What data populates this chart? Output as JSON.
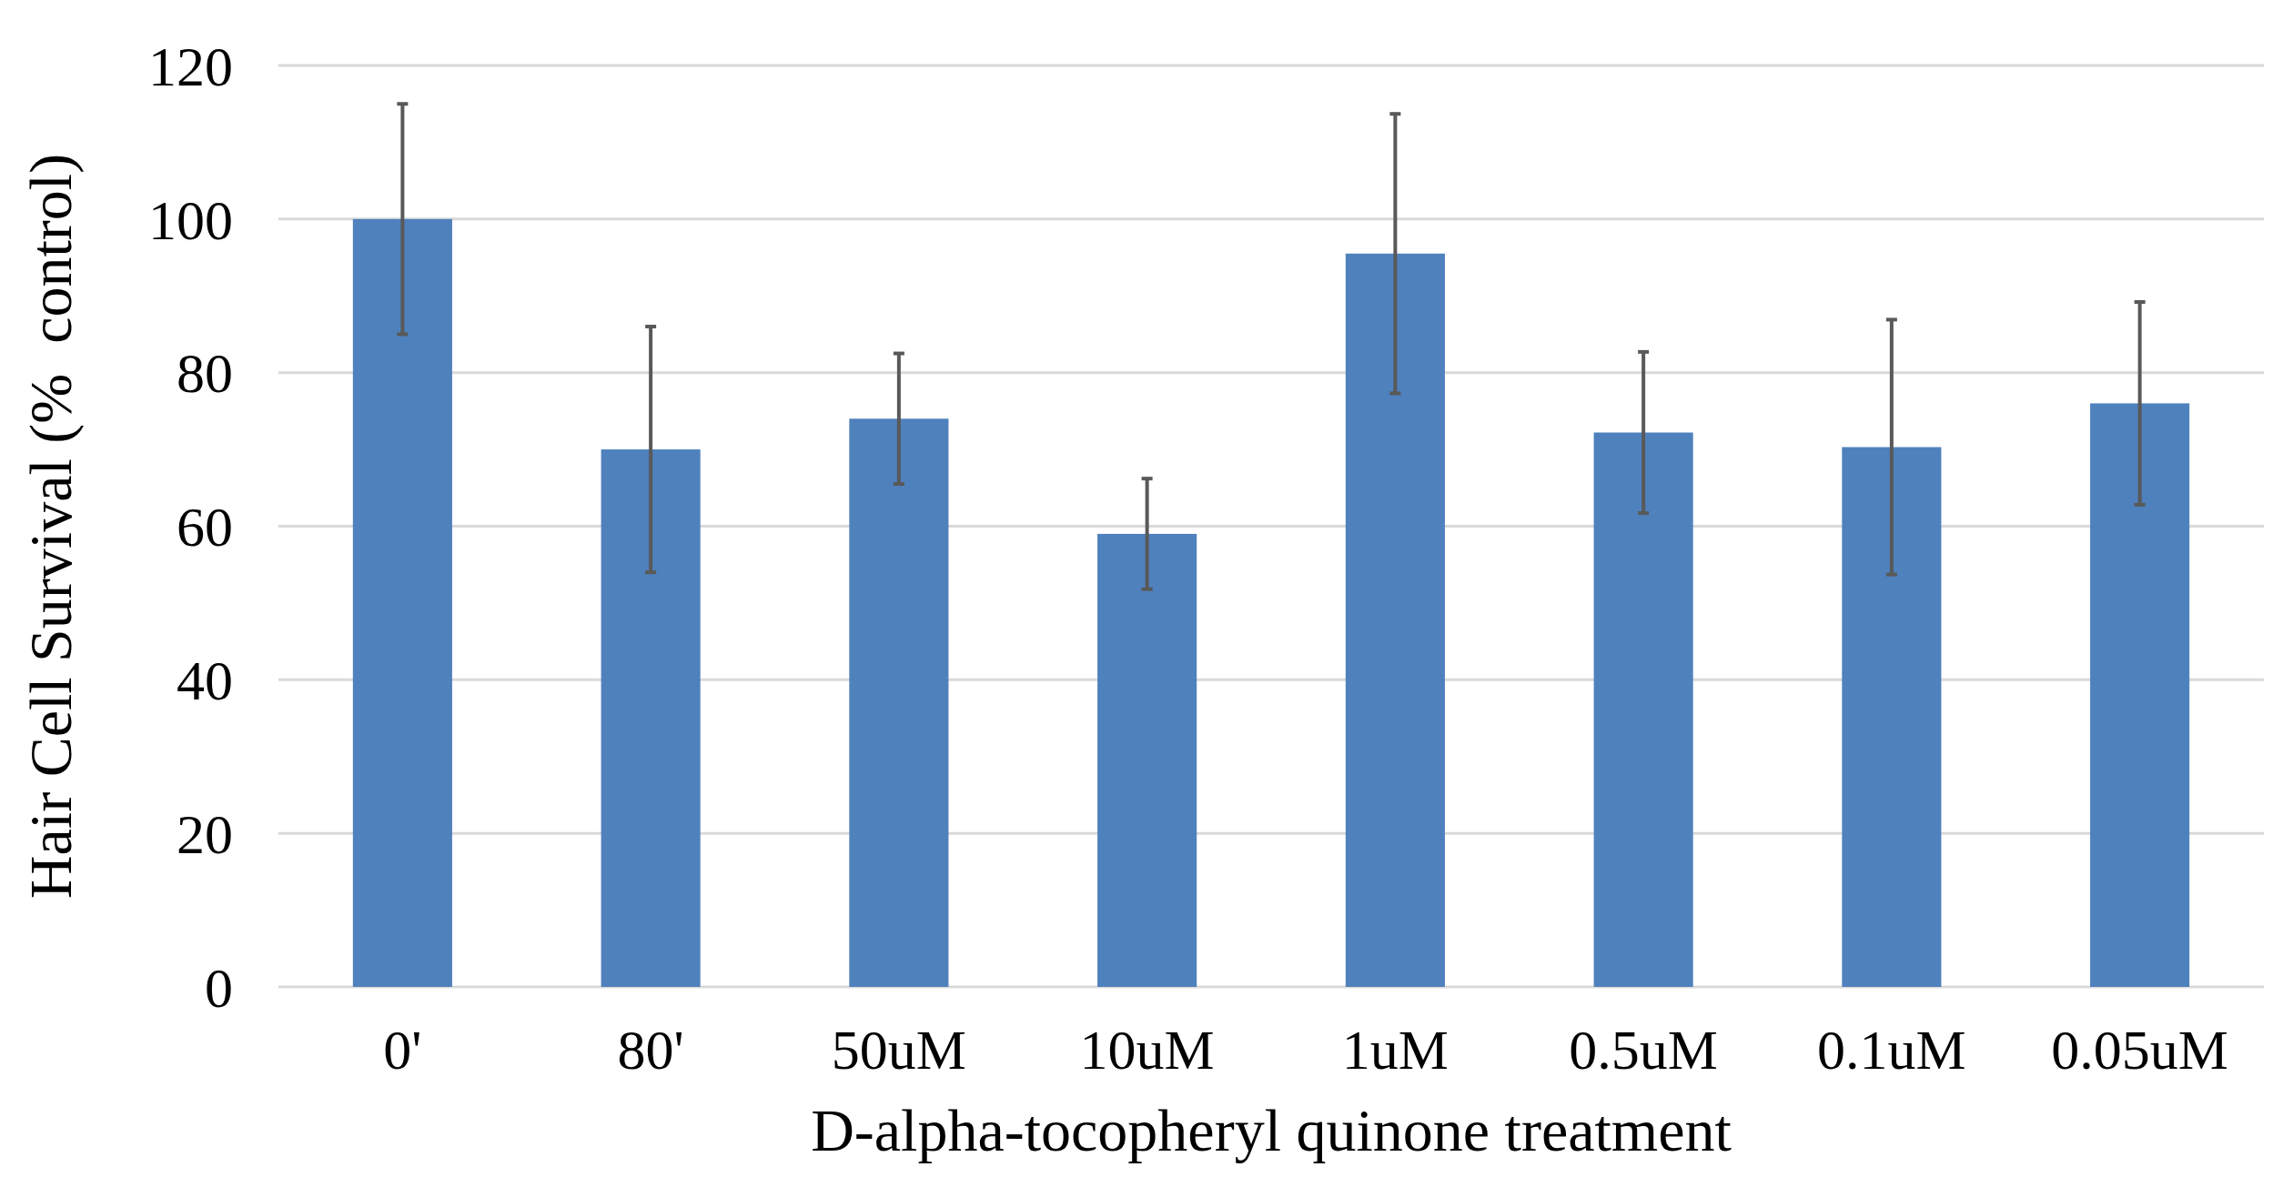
{
  "chart_data": {
    "type": "bar",
    "xlabel": "D-alpha-tocopheryl quinone treatment",
    "ylabel": "Hair Cell Survival (%  control)",
    "categories": [
      "0'",
      "80'",
      "50uM",
      "10uM",
      "1uM",
      "0.5uM",
      "0.1uM",
      "0.05uM"
    ],
    "values": [
      100,
      70,
      74,
      59,
      95.5,
      72.2,
      70.3,
      76
    ],
    "errors": [
      15,
      16,
      8.5,
      7.2,
      18.2,
      10.5,
      16.6,
      13.2
    ],
    "color": "#4f81bd",
    "ylim": [
      0,
      120
    ],
    "yticks": [
      0,
      20,
      40,
      60,
      80,
      100,
      120
    ],
    "grid": "y"
  }
}
